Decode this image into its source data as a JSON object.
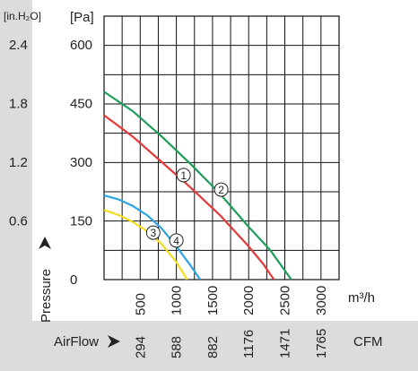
{
  "chart_data": {
    "type": "line",
    "title": "",
    "grid": true,
    "pressure_axis": {
      "label": "Pressure",
      "unit_pa": "[Pa]",
      "unit_inh2o": "[in.H₂O]",
      "range": [
        0,
        600
      ],
      "ticks_pa": [
        "600",
        "450",
        "300",
        "150",
        "0"
      ],
      "ticks_inh2o": [
        "2.4",
        "1.8",
        "1.2",
        "0.6"
      ]
    },
    "airflow_axis": {
      "label": "AirFlow",
      "unit_m3h": "m³/h",
      "unit_cfm": "CFM",
      "range": [
        0,
        3250
      ],
      "ticks_m3h": [
        "500",
        "1000",
        "1500",
        "2000",
        "2500",
        "3000"
      ],
      "ticks_cfm": [
        "294",
        "588",
        "882",
        "1176",
        "1471",
        "1765"
      ]
    },
    "series": [
      {
        "name": "1",
        "color": "#e23a3a",
        "x": [
          0,
          400,
          800,
          1200,
          1600,
          2000,
          2200,
          2350
        ],
        "y": [
          420,
          365,
          300,
          235,
          165,
          85,
          40,
          0
        ]
      },
      {
        "name": "2",
        "color": "#1f9e5a",
        "x": [
          0,
          400,
          800,
          1200,
          1600,
          2000,
          2300,
          2590
        ],
        "y": [
          480,
          430,
          365,
          295,
          220,
          135,
          75,
          0
        ]
      },
      {
        "name": "3",
        "color": "#f2dd1e",
        "x": [
          0,
          200,
          400,
          600,
          800,
          1000,
          1150
        ],
        "y": [
          178,
          165,
          147,
          123,
          90,
          45,
          0
        ]
      },
      {
        "name": "4",
        "color": "#2ea3e0",
        "x": [
          0,
          200,
          400,
          600,
          800,
          1000,
          1200,
          1330
        ],
        "y": [
          215,
          205,
          188,
          164,
          130,
          85,
          35,
          0
        ]
      }
    ],
    "markers": [
      {
        "label": "1",
        "x": 1100,
        "y": 267
      },
      {
        "label": "2",
        "x": 1620,
        "y": 230
      },
      {
        "label": "3",
        "x": 680,
        "y": 120
      },
      {
        "label": "4",
        "x": 1000,
        "y": 100
      }
    ]
  }
}
